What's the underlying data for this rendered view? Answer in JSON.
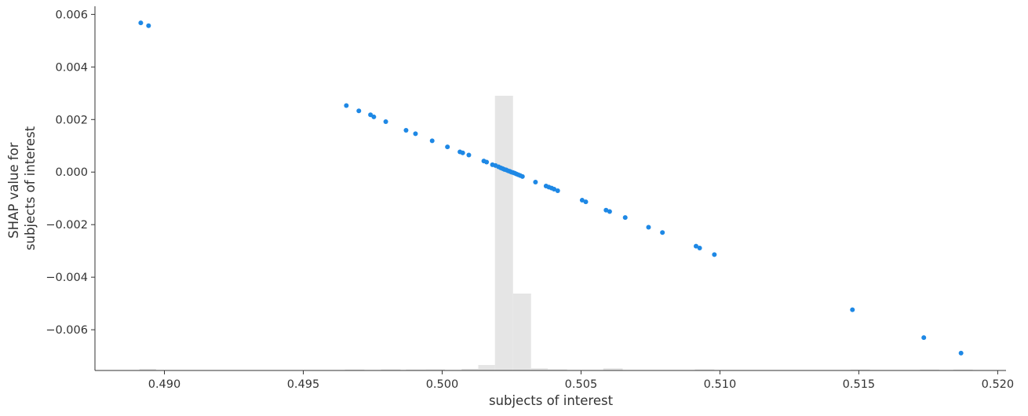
{
  "chart_data": {
    "type": "scatter",
    "title": "",
    "xlabel": "subjects of interest",
    "ylabel": [
      "SHAP value for",
      "subjects of interest"
    ],
    "xlim": [
      0.4875,
      0.5203
    ],
    "ylim": [
      -0.00755,
      0.00625
    ],
    "xticks": [
      0.49,
      0.495,
      0.5,
      0.505,
      0.51,
      0.515,
      0.52
    ],
    "xtick_labels": [
      "0.490",
      "0.495",
      "0.500",
      "0.505",
      "0.510",
      "0.515",
      "0.520"
    ],
    "yticks": [
      0.006,
      0.004,
      0.002,
      0.0,
      -0.002,
      -0.004,
      -0.006
    ],
    "ytick_labels": [
      "0.006",
      "0.004",
      "0.002",
      "0.000",
      "−0.002",
      "−0.004",
      "−0.006"
    ],
    "grid": false,
    "point_color": "#1e88e5",
    "histogram_color": "#e5e5e5",
    "axis_color": "#333333",
    "histogram": {
      "bins": [
        {
          "x0": 0.4891,
          "x1": 0.4897,
          "h": 0.006
        },
        {
          "x0": 0.4965,
          "x1": 0.4972,
          "h": 0.002
        },
        {
          "x0": 0.4978,
          "x1": 0.4985,
          "h": 0.004
        },
        {
          "x0": 0.4987,
          "x1": 0.4994,
          "h": 0.002
        },
        {
          "x0": 0.4994,
          "x1": 0.5001,
          "h": 0.004
        },
        {
          "x0": 0.5007,
          "x1": 0.5013,
          "h": 0.006
        },
        {
          "x0": 0.5013,
          "x1": 0.5019,
          "h": 0.02
        },
        {
          "x0": 0.5019,
          "x1": 0.50255,
          "h": 1.0
        },
        {
          "x0": 0.50255,
          "x1": 0.5032,
          "h": 0.28
        },
        {
          "x0": 0.5032,
          "x1": 0.5038,
          "h": 0.008
        },
        {
          "x0": 0.5038,
          "x1": 0.5045,
          "h": 0.004
        },
        {
          "x0": 0.5058,
          "x1": 0.5065,
          "h": 0.008
        },
        {
          "x0": 0.5091,
          "x1": 0.5098,
          "h": 0.004
        },
        {
          "x0": 0.5147,
          "x1": 0.5154,
          "h": 0.002
        },
        {
          "x0": 0.5172,
          "x1": 0.5179,
          "h": 0.002
        },
        {
          "x0": 0.5184,
          "x1": 0.5191,
          "h": 0.002
        }
      ]
    },
    "points": [
      {
        "x": 0.48915,
        "y": 0.00568
      },
      {
        "x": 0.48943,
        "y": 0.00557
      },
      {
        "x": 0.49655,
        "y": 0.00253
      },
      {
        "x": 0.497,
        "y": 0.00233
      },
      {
        "x": 0.49742,
        "y": 0.00218
      },
      {
        "x": 0.49754,
        "y": 0.0021
      },
      {
        "x": 0.49797,
        "y": 0.00192
      },
      {
        "x": 0.4987,
        "y": 0.00159
      },
      {
        "x": 0.49904,
        "y": 0.00146
      },
      {
        "x": 0.49964,
        "y": 0.00119
      },
      {
        "x": 0.50019,
        "y": 0.00096
      },
      {
        "x": 0.50064,
        "y": 0.00077
      },
      {
        "x": 0.50074,
        "y": 0.00073
      },
      {
        "x": 0.50096,
        "y": 0.00065
      },
      {
        "x": 0.5015,
        "y": 0.00042
      },
      {
        "x": 0.5016,
        "y": 0.00038
      },
      {
        "x": 0.50181,
        "y": 0.00028
      },
      {
        "x": 0.50192,
        "y": 0.00025
      },
      {
        "x": 0.50203,
        "y": 0.0002
      },
      {
        "x": 0.50211,
        "y": 0.00016
      },
      {
        "x": 0.50218,
        "y": 0.00013
      },
      {
        "x": 0.50224,
        "y": 0.0001
      },
      {
        "x": 0.50231,
        "y": 8e-05
      },
      {
        "x": 0.50237,
        "y": 5e-05
      },
      {
        "x": 0.50243,
        "y": 3e-05
      },
      {
        "x": 0.50249,
        "y": 0.0
      },
      {
        "x": 0.50255,
        "y": -2e-05
      },
      {
        "x": 0.50261,
        "y": -4e-05
      },
      {
        "x": 0.50267,
        "y": -7e-05
      },
      {
        "x": 0.50274,
        "y": -0.0001
      },
      {
        "x": 0.50281,
        "y": -0.00013
      },
      {
        "x": 0.50289,
        "y": -0.00017
      },
      {
        "x": 0.50336,
        "y": -0.00038
      },
      {
        "x": 0.50374,
        "y": -0.00053
      },
      {
        "x": 0.50384,
        "y": -0.00057
      },
      {
        "x": 0.50394,
        "y": -0.00061
      },
      {
        "x": 0.50403,
        "y": -0.00065
      },
      {
        "x": 0.50416,
        "y": -0.00071
      },
      {
        "x": 0.50504,
        "y": -0.00107
      },
      {
        "x": 0.50517,
        "y": -0.00113
      },
      {
        "x": 0.5059,
        "y": -0.00145
      },
      {
        "x": 0.50603,
        "y": -0.0015
      },
      {
        "x": 0.50659,
        "y": -0.00173
      },
      {
        "x": 0.50743,
        "y": -0.0021
      },
      {
        "x": 0.50793,
        "y": -0.0023
      },
      {
        "x": 0.50914,
        "y": -0.00282
      },
      {
        "x": 0.50927,
        "y": -0.00289
      },
      {
        "x": 0.5098,
        "y": -0.00314
      },
      {
        "x": 0.51477,
        "y": -0.00524
      },
      {
        "x": 0.51734,
        "y": -0.0063
      },
      {
        "x": 0.51868,
        "y": -0.00689
      }
    ]
  }
}
